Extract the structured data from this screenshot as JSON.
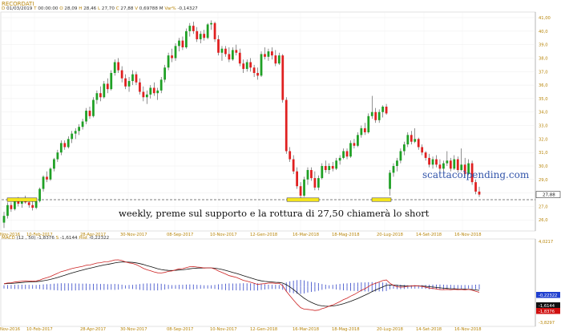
{
  "header": {
    "symbol": "RECORDATI",
    "ohlc": [
      {
        "k": "D",
        "v": "01/03/2019"
      },
      {
        "k": "T",
        "v": "00:00:00"
      },
      {
        "k": "O",
        "v": "28,09"
      },
      {
        "k": "H",
        "v": "28,46"
      },
      {
        "k": "L",
        "v": "27,70"
      },
      {
        "k": "C",
        "v": "27,88"
      },
      {
        "k": "V",
        "v": "0,69788 M"
      },
      {
        "k": "Var%",
        "v": "-0,14327"
      }
    ]
  },
  "macd_header": {
    "label": "MACD",
    "params": "(12 , 50)",
    "macd": "-1,8376",
    "signal_label": "S",
    "signal": "-1,6144",
    "hist_label": "Hist",
    "hist": "-0,22322"
  },
  "annotation_text": "weekly, preme sul supporto e la rottura di 27,50 chiamerà lo short",
  "watermark": "scattacolpending.com",
  "support_level": 27.5,
  "current_price_label": "27,88",
  "right_axis_labels": [
    "41,00",
    "40,0",
    "39,0",
    "38,0",
    "37,0",
    "36,0",
    "35,0",
    "34,0",
    "33,0",
    "32,0",
    "31,0",
    "30,0",
    "29,0",
    "28,0",
    "27,0",
    "26,0"
  ],
  "macd_axis_labels": {
    "top": "4,0217",
    "hist": "-0,22322",
    "signal": "-1,6144",
    "macd": "-1,8376",
    "bottom": "-3,8297"
  },
  "date_labels": [
    "Nov-2016",
    "10-Feb-2017",
    "28-Apr-2017",
    "30-Nov-2017",
    "08-Sep-2017",
    "10-Nov-2017",
    "12-Gen-2018",
    "16-Mar-2018",
    "18-Mag-2018",
    "20-Lug-2018",
    "14-Set-2018",
    "16-Nov-2018"
  ],
  "macd_date_labels": [
    "Nov-2016",
    "10-Feb-2017",
    "28-Apr-2017",
    "30-Nov-2017",
    "08-Sep-2017",
    "10-Nov-2017",
    "12-Gen-2018",
    "16-Mar-2018",
    "18-Mag-2018",
    "20-Lug-2018",
    "14-Set-2018",
    "16-Nov-2018"
  ],
  "colors": {
    "up": "#1fa025",
    "down": "#e02020",
    "support_marker": "#f5e61e",
    "watermark": "#3355aa",
    "macd": "#111111",
    "signal": "#cc2222",
    "hist": "#4455cc",
    "axis_text": "#b8860b"
  },
  "chart_data": {
    "type": "candlestick",
    "ylim": [
      25.3,
      41.3
    ],
    "candles": [
      [
        25.8,
        26.6,
        25.4,
        26.3
      ],
      [
        26.3,
        27.3,
        26.1,
        27.1
      ],
      [
        27.1,
        27.3,
        26.6,
        26.8
      ],
      [
        26.8,
        27.6,
        26.7,
        27.4
      ],
      [
        27.4,
        27.7,
        27.0,
        27.2
      ],
      [
        27.2,
        27.6,
        26.9,
        27.5
      ],
      [
        27.5,
        27.8,
        27.2,
        27.3
      ],
      [
        27.3,
        27.6,
        26.9,
        27.1
      ],
      [
        27.1,
        27.4,
        26.7,
        26.9
      ],
      [
        26.9,
        27.5,
        26.8,
        27.4
      ],
      [
        27.4,
        28.4,
        27.3,
        28.3
      ],
      [
        28.3,
        29.3,
        28.1,
        29.2
      ],
      [
        29.2,
        29.6,
        28.8,
        29.0
      ],
      [
        29.0,
        29.9,
        28.9,
        29.8
      ],
      [
        29.8,
        30.6,
        29.6,
        30.5
      ],
      [
        30.5,
        31.2,
        30.3,
        31.0
      ],
      [
        31.0,
        31.9,
        30.8,
        31.7
      ],
      [
        31.7,
        31.9,
        31.2,
        31.4
      ],
      [
        31.4,
        32.2,
        31.3,
        32.0
      ],
      [
        32.0,
        32.6,
        31.7,
        32.4
      ],
      [
        32.4,
        32.8,
        32.0,
        32.6
      ],
      [
        32.6,
        33.1,
        32.3,
        32.9
      ],
      [
        32.9,
        33.5,
        32.7,
        33.3
      ],
      [
        33.3,
        34.3,
        33.1,
        34.1
      ],
      [
        34.1,
        34.4,
        33.5,
        33.7
      ],
      [
        33.7,
        35.1,
        33.6,
        34.9
      ],
      [
        34.9,
        35.6,
        34.6,
        35.4
      ],
      [
        35.4,
        35.9,
        34.8,
        35.1
      ],
      [
        35.1,
        36.3,
        35.0,
        36.1
      ],
      [
        36.1,
        36.5,
        35.4,
        35.7
      ],
      [
        35.7,
        37.1,
        35.6,
        36.9
      ],
      [
        36.9,
        37.9,
        36.7,
        37.7
      ],
      [
        37.7,
        38.0,
        36.9,
        37.1
      ],
      [
        37.1,
        37.4,
        36.2,
        36.5
      ],
      [
        36.5,
        36.8,
        35.7,
        35.9
      ],
      [
        35.9,
        36.6,
        35.5,
        36.3
      ],
      [
        36.3,
        37.1,
        36.0,
        36.8
      ],
      [
        36.8,
        37.0,
        36.0,
        36.2
      ],
      [
        36.2,
        36.5,
        35.3,
        35.5
      ],
      [
        35.5,
        35.9,
        34.8,
        35.1
      ],
      [
        35.1,
        35.6,
        34.6,
        35.3
      ],
      [
        35.3,
        36.0,
        35.0,
        35.8
      ],
      [
        35.8,
        36.2,
        35.2,
        35.4
      ],
      [
        35.4,
        35.8,
        34.9,
        35.6
      ],
      [
        35.6,
        36.6,
        35.4,
        36.4
      ],
      [
        36.4,
        37.5,
        36.2,
        37.3
      ],
      [
        37.3,
        38.4,
        37.1,
        38.2
      ],
      [
        38.2,
        38.7,
        37.7,
        38.0
      ],
      [
        38.0,
        39.1,
        37.8,
        38.9
      ],
      [
        38.9,
        39.5,
        38.5,
        39.3
      ],
      [
        39.3,
        39.6,
        38.6,
        38.8
      ],
      [
        38.8,
        40.2,
        38.7,
        40.0
      ],
      [
        40.0,
        40.6,
        39.6,
        40.4
      ],
      [
        40.4,
        40.7,
        39.8,
        40.0
      ],
      [
        40.0,
        40.3,
        39.2,
        39.4
      ],
      [
        39.4,
        40.0,
        39.1,
        39.8
      ],
      [
        39.8,
        40.1,
        39.3,
        39.5
      ],
      [
        39.5,
        40.6,
        39.4,
        40.5
      ],
      [
        40.5,
        40.8,
        40.1,
        40.6
      ],
      [
        40.6,
        40.7,
        39.2,
        39.4
      ],
      [
        39.4,
        39.7,
        38.2,
        38.4
      ],
      [
        38.4,
        38.9,
        37.8,
        38.7
      ],
      [
        38.7,
        38.9,
        38.1,
        38.3
      ],
      [
        38.3,
        38.8,
        37.7,
        37.9
      ],
      [
        37.9,
        38.8,
        37.8,
        38.6
      ],
      [
        38.6,
        39.0,
        38.2,
        38.4
      ],
      [
        38.4,
        38.7,
        37.4,
        37.6
      ],
      [
        37.6,
        37.9,
        36.9,
        37.2
      ],
      [
        37.2,
        37.9,
        37.0,
        37.7
      ],
      [
        37.7,
        38.0,
        37.0,
        37.3
      ],
      [
        37.3,
        37.5,
        36.6,
        36.9
      ],
      [
        36.9,
        37.3,
        36.4,
        36.7
      ],
      [
        36.7,
        38.5,
        36.6,
        38.3
      ],
      [
        38.3,
        38.8,
        37.9,
        38.1
      ],
      [
        38.1,
        38.7,
        37.8,
        38.5
      ],
      [
        38.5,
        38.8,
        37.9,
        38.2
      ],
      [
        38.2,
        38.6,
        37.4,
        37.6
      ],
      [
        37.6,
        38.4,
        37.5,
        38.2
      ],
      [
        38.2,
        38.3,
        34.7,
        34.9
      ],
      [
        34.9,
        35.1,
        30.9,
        31.1
      ],
      [
        31.1,
        31.4,
        30.3,
        30.5
      ],
      [
        30.5,
        30.8,
        29.4,
        29.6
      ],
      [
        29.6,
        29.9,
        28.3,
        28.5
      ],
      [
        28.5,
        28.8,
        27.6,
        27.8
      ],
      [
        27.8,
        29.2,
        27.7,
        29.0
      ],
      [
        29.0,
        29.9,
        28.6,
        29.7
      ],
      [
        29.7,
        29.9,
        28.9,
        29.1
      ],
      [
        29.1,
        29.6,
        28.2,
        28.4
      ],
      [
        28.4,
        29.3,
        28.2,
        29.1
      ],
      [
        29.1,
        30.2,
        29.0,
        30.0
      ],
      [
        30.0,
        30.4,
        29.5,
        29.7
      ],
      [
        29.7,
        30.2,
        29.4,
        30.0
      ],
      [
        30.0,
        30.3,
        29.6,
        29.8
      ],
      [
        29.8,
        30.6,
        29.7,
        30.4
      ],
      [
        30.4,
        30.8,
        30.1,
        30.6
      ],
      [
        30.6,
        31.3,
        30.5,
        31.1
      ],
      [
        31.1,
        31.3,
        30.5,
        30.7
      ],
      [
        30.7,
        31.9,
        30.6,
        31.7
      ],
      [
        31.7,
        32.0,
        31.3,
        31.5
      ],
      [
        31.5,
        32.5,
        31.4,
        32.3
      ],
      [
        32.3,
        33.0,
        32.1,
        32.8
      ],
      [
        32.8,
        33.2,
        32.3,
        32.5
      ],
      [
        32.5,
        33.9,
        32.4,
        33.7
      ],
      [
        33.7,
        35.2,
        33.5,
        34.0
      ],
      [
        34.0,
        34.3,
        33.2,
        33.4
      ],
      [
        33.4,
        34.2,
        33.2,
        34.0
      ],
      [
        34.0,
        34.5,
        33.6,
        34.4
      ],
      [
        34.4,
        34.6,
        33.8,
        33.9
      ],
      [
        28.3,
        29.7,
        27.8,
        29.5
      ],
      [
        29.5,
        30.2,
        29.2,
        30.0
      ],
      [
        30.0,
        30.6,
        29.6,
        30.4
      ],
      [
        30.4,
        31.3,
        30.2,
        31.1
      ],
      [
        31.1,
        31.8,
        30.8,
        31.6
      ],
      [
        31.6,
        32.5,
        31.4,
        32.3
      ],
      [
        32.3,
        32.6,
        31.6,
        31.8
      ],
      [
        31.8,
        32.8,
        31.7,
        32.0
      ],
      [
        32.0,
        32.1,
        31.2,
        31.4
      ],
      [
        31.4,
        31.6,
        30.8,
        31.0
      ],
      [
        31.0,
        31.1,
        30.4,
        30.6
      ],
      [
        30.6,
        30.9,
        29.9,
        30.1
      ],
      [
        30.1,
        30.7,
        29.8,
        30.5
      ],
      [
        30.5,
        30.8,
        29.9,
        30.1
      ],
      [
        30.1,
        30.5,
        29.5,
        29.8
      ],
      [
        29.8,
        30.4,
        29.6,
        30.2
      ],
      [
        30.2,
        31.1,
        30.0,
        30.4
      ],
      [
        30.4,
        30.6,
        29.6,
        29.8
      ],
      [
        29.8,
        30.8,
        29.7,
        30.5
      ],
      [
        30.5,
        30.7,
        29.5,
        29.7
      ],
      [
        29.7,
        31.3,
        29.6,
        30.1
      ],
      [
        30.1,
        30.6,
        29.2,
        29.4
      ],
      [
        29.4,
        30.5,
        29.3,
        30.2
      ],
      [
        30.2,
        30.4,
        28.6,
        28.8
      ],
      [
        28.8,
        29.0,
        27.9,
        28.1
      ],
      [
        28.1,
        28.46,
        27.7,
        27.88
      ]
    ],
    "macd_range": [
      -3.8297,
      4.0217
    ]
  }
}
